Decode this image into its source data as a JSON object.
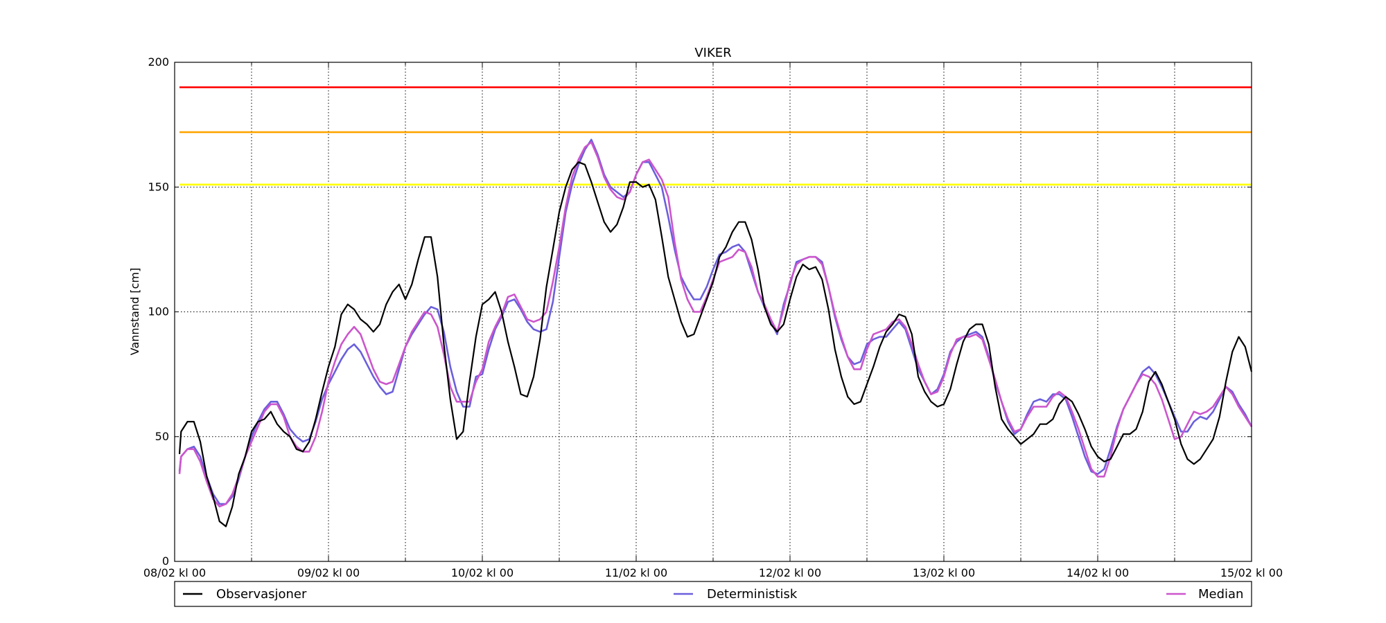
{
  "chart_data": {
    "type": "line",
    "title": "VIKER",
    "xlabel": "",
    "ylabel": "Vannstand [cm]",
    "ylim": [
      0,
      200
    ],
    "xlim": [
      0,
      168
    ],
    "x_unit": "hours",
    "yticks": [
      0,
      50,
      100,
      150,
      200
    ],
    "xticks": [
      {
        "x": 0,
        "label": "08/02 kl 00"
      },
      {
        "x": 24,
        "label": "09/02 kl 00"
      },
      {
        "x": 48,
        "label": "10/02 kl 00"
      },
      {
        "x": 72,
        "label": "11/02 kl 00"
      },
      {
        "x": 96,
        "label": "12/02 kl 00"
      },
      {
        "x": 120,
        "label": "13/02 kl 00"
      },
      {
        "x": 144,
        "label": "14/02 kl 00"
      },
      {
        "x": 168,
        "label": "15/02 kl 00"
      }
    ],
    "minor_xticks": [
      12,
      36,
      60,
      84,
      108,
      132,
      156
    ],
    "grid": true,
    "legend_position": "bottom",
    "thresholds": [
      {
        "value": 190,
        "color": "#ff0000"
      },
      {
        "value": 172,
        "color": "#ffa500"
      },
      {
        "value": 151,
        "color": "#ffff00"
      }
    ],
    "series": [
      {
        "name": "Observasjoner",
        "color": "#000000",
        "x": [
          0,
          1,
          2,
          3,
          4,
          5,
          6,
          7,
          8,
          9,
          10,
          11,
          12,
          13,
          14,
          15,
          16,
          17,
          18,
          19,
          20,
          21,
          22,
          23,
          24,
          25,
          26,
          27,
          28,
          29,
          30,
          31,
          32,
          33,
          34,
          35,
          36,
          37,
          38,
          39,
          40,
          41,
          42,
          43,
          44,
          45,
          46,
          47,
          48,
          49,
          50,
          51,
          52,
          53,
          54,
          55,
          56,
          57,
          58,
          59,
          60,
          61,
          62,
          63,
          64,
          65,
          66,
          67,
          68,
          69,
          70,
          71,
          72,
          73,
          74,
          75,
          76,
          77,
          78,
          79,
          80,
          81,
          82,
          83,
          84,
          85,
          86,
          87,
          88,
          89,
          90,
          91,
          92,
          93,
          94,
          95,
          96,
          97,
          98,
          99,
          100,
          101,
          102,
          103,
          104,
          105,
          106,
          107,
          108,
          109,
          110,
          111,
          112,
          113,
          114,
          115,
          116,
          117,
          118,
          119,
          120,
          121,
          122,
          123,
          124,
          125,
          126,
          127,
          128,
          129,
          130,
          131,
          132,
          133,
          134,
          135,
          136,
          137,
          138,
          139,
          140,
          141,
          142,
          143,
          144,
          145,
          146,
          147,
          148,
          149,
          150,
          151,
          152,
          153,
          154,
          155,
          156,
          157,
          158,
          159,
          160,
          161,
          162,
          163,
          164,
          165,
          166,
          167,
          168
        ],
        "values": [
          43,
          52,
          56,
          56,
          48,
          34,
          26,
          16,
          14,
          22,
          35,
          42,
          52,
          56,
          57,
          60,
          55,
          52,
          50,
          45,
          44,
          48,
          57,
          68,
          78,
          86,
          99,
          103,
          101,
          97,
          95,
          92,
          95,
          103,
          108,
          111,
          105,
          111,
          121,
          130,
          130,
          114,
          87,
          65,
          49,
          52,
          72,
          90,
          103,
          105,
          108,
          100,
          88,
          78,
          67,
          66,
          74,
          89,
          110,
          125,
          140,
          150,
          157,
          160,
          159,
          152,
          144,
          136,
          132,
          135,
          142,
          152,
          152,
          150,
          151,
          145,
          130,
          114,
          105,
          96,
          90,
          91,
          98,
          105,
          112,
          122,
          126,
          132,
          136,
          136,
          129,
          117,
          102,
          95,
          92,
          95,
          105,
          114,
          119,
          117,
          118,
          113,
          101,
          85,
          74,
          66,
          63,
          64,
          71,
          78,
          86,
          92,
          95,
          99,
          98,
          91,
          74,
          68,
          64,
          62,
          63,
          69,
          79,
          88,
          93,
          95,
          95,
          87,
          70,
          57,
          53,
          50,
          47,
          49,
          51,
          55,
          55,
          57,
          63,
          66,
          64,
          59,
          53,
          46,
          42,
          40,
          41,
          46,
          51,
          51,
          53,
          60,
          72,
          76,
          71,
          64,
          57,
          47,
          41,
          39,
          41,
          45,
          49,
          58,
          72,
          84,
          90,
          86,
          76
        ]
      },
      {
        "name": "Deterministisk",
        "color": "#6a5fdc",
        "x": [
          0,
          1,
          2,
          3,
          4,
          5,
          6,
          7,
          8,
          9,
          10,
          11,
          12,
          13,
          14,
          15,
          16,
          17,
          18,
          19,
          20,
          21,
          22,
          23,
          24,
          25,
          26,
          27,
          28,
          29,
          30,
          31,
          32,
          33,
          34,
          35,
          36,
          37,
          38,
          39,
          40,
          41,
          42,
          43,
          44,
          45,
          46,
          47,
          48,
          49,
          50,
          51,
          52,
          53,
          54,
          55,
          56,
          57,
          58,
          59,
          60,
          61,
          62,
          63,
          64,
          65,
          66,
          67,
          68,
          69,
          70,
          71,
          72,
          73,
          74,
          75,
          76,
          77,
          78,
          79,
          80,
          81,
          82,
          83,
          84,
          85,
          86,
          87,
          88,
          89,
          90,
          91,
          92,
          93,
          94,
          95,
          96,
          97,
          98,
          99,
          100,
          101,
          102,
          103,
          104,
          105,
          106,
          107,
          108,
          109,
          110,
          111,
          112,
          113,
          114,
          115,
          116,
          117,
          118,
          119,
          120,
          121,
          122,
          123,
          124,
          125,
          126,
          127,
          128,
          129,
          130,
          131,
          132,
          133,
          134,
          135,
          136,
          137,
          138,
          139,
          140,
          141,
          142,
          143,
          144,
          145,
          146,
          147,
          148,
          149,
          150,
          151,
          152,
          153,
          154,
          155,
          156,
          157,
          158,
          159,
          160,
          161,
          162,
          163,
          164,
          165,
          166,
          167,
          168
        ],
        "values": [
          36,
          42,
          45,
          46,
          42,
          34,
          27,
          23,
          23,
          26,
          33,
          42,
          50,
          56,
          61,
          64,
          64,
          59,
          53,
          50,
          48,
          49,
          56,
          65,
          71,
          76,
          81,
          85,
          87,
          84,
          79,
          74,
          70,
          67,
          68,
          77,
          86,
          91,
          95,
          99,
          102,
          101,
          92,
          78,
          68,
          62,
          62,
          74,
          75,
          85,
          93,
          98,
          104,
          105,
          101,
          96,
          93,
          92,
          93,
          104,
          122,
          140,
          151,
          159,
          165,
          169,
          163,
          155,
          150,
          148,
          146,
          148,
          155,
          160,
          160,
          155,
          150,
          138,
          125,
          114,
          109,
          105,
          105,
          110,
          117,
          123,
          124,
          126,
          127,
          124,
          116,
          108,
          102,
          96,
          91,
          103,
          111,
          120,
          121,
          122,
          122,
          120,
          110,
          98,
          89,
          82,
          79,
          80,
          87,
          89,
          90,
          90,
          93,
          96,
          93,
          85,
          77,
          72,
          67,
          69,
          75,
          84,
          88,
          90,
          91,
          92,
          90,
          82,
          72,
          64,
          56,
          51,
          53,
          59,
          64,
          65,
          64,
          67,
          67,
          65,
          58,
          50,
          42,
          36,
          35,
          37,
          45,
          54,
          61,
          66,
          71,
          76,
          78,
          75,
          70,
          64,
          58,
          52,
          52,
          56,
          58,
          57,
          60,
          65,
          70,
          68,
          63,
          59,
          54
        ]
      },
      {
        "name": "Median",
        "color": "#cc55cc",
        "x": [
          0,
          1,
          2,
          3,
          4,
          5,
          6,
          7,
          8,
          9,
          10,
          11,
          12,
          13,
          14,
          15,
          16,
          17,
          18,
          19,
          20,
          21,
          22,
          23,
          24,
          25,
          26,
          27,
          28,
          29,
          30,
          31,
          32,
          33,
          34,
          35,
          36,
          37,
          38,
          39,
          40,
          41,
          42,
          43,
          44,
          45,
          46,
          47,
          48,
          49,
          50,
          51,
          52,
          53,
          54,
          55,
          56,
          57,
          58,
          59,
          60,
          61,
          62,
          63,
          64,
          65,
          66,
          67,
          68,
          69,
          70,
          71,
          72,
          73,
          74,
          75,
          76,
          77,
          78,
          79,
          80,
          81,
          82,
          83,
          84,
          85,
          86,
          87,
          88,
          89,
          90,
          91,
          92,
          93,
          94,
          95,
          96,
          97,
          98,
          99,
          100,
          101,
          102,
          103,
          104,
          105,
          106,
          107,
          108,
          109,
          110,
          111,
          112,
          113,
          114,
          115,
          116,
          117,
          118,
          119,
          120,
          121,
          122,
          123,
          124,
          125,
          126,
          127,
          128,
          129,
          130,
          131,
          132,
          133,
          134,
          135,
          136,
          137,
          138,
          139,
          140,
          141,
          142,
          143,
          144,
          145,
          146,
          147,
          148,
          149,
          150,
          151,
          152,
          153,
          154,
          155,
          156,
          157,
          158,
          159,
          160,
          161,
          162,
          163,
          164,
          165,
          166,
          167,
          168
        ],
        "values": [
          35,
          42,
          45,
          45,
          40,
          32,
          25,
          22,
          23,
          27,
          34,
          42,
          48,
          54,
          60,
          63,
          63,
          58,
          50,
          46,
          44,
          44,
          50,
          60,
          72,
          80,
          87,
          91,
          94,
          91,
          84,
          77,
          72,
          71,
          72,
          79,
          86,
          92,
          96,
          100,
          99,
          94,
          83,
          70,
          64,
          64,
          64,
          72,
          77,
          88,
          94,
          99,
          106,
          107,
          102,
          97,
          96,
          97,
          100,
          112,
          126,
          142,
          154,
          161,
          166,
          168,
          162,
          154,
          149,
          146,
          145,
          148,
          155,
          160,
          161,
          157,
          153,
          146,
          128,
          113,
          105,
          100,
          100,
          106,
          113,
          120,
          121,
          122,
          125,
          124,
          118,
          108,
          103,
          97,
          92,
          101,
          112,
          119,
          121,
          122,
          122,
          119,
          110,
          99,
          90,
          82,
          77,
          77,
          85,
          91,
          92,
          93,
          96,
          97,
          94,
          87,
          79,
          72,
          67,
          68,
          74,
          83,
          89,
          90,
          90,
          91,
          89,
          81,
          73,
          64,
          57,
          52,
          53,
          58,
          62,
          62,
          62,
          66,
          68,
          66,
          60,
          53,
          45,
          37,
          34,
          34,
          42,
          53,
          61,
          66,
          71,
          75,
          74,
          71,
          65,
          57,
          49,
          50,
          55,
          60,
          59,
          60,
          62,
          66,
          70,
          67,
          62,
          58,
          54
        ]
      }
    ]
  }
}
